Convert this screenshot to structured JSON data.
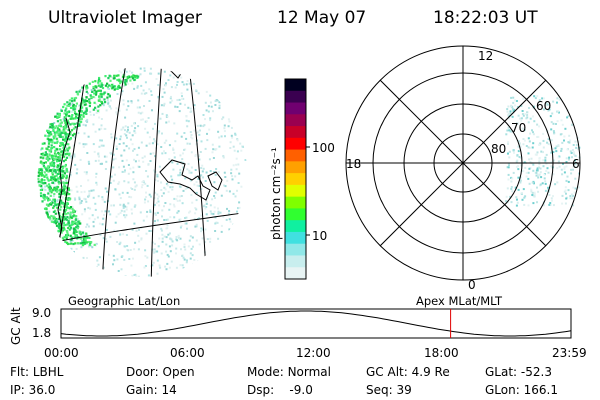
{
  "header": {
    "instrument": "Ultraviolet Imager",
    "date": "12 May 07",
    "time": "18:22:03 UT"
  },
  "left_panel": {
    "footer_label": "Geographic Lat/Lon"
  },
  "colorbar": {
    "unit_label": "photon cm⁻²s⁻¹",
    "ticks": [
      "100",
      "10"
    ],
    "colors": [
      "#000020",
      "#3a0050",
      "#700070",
      "#9a0050",
      "#c80028",
      "#ff0000",
      "#ff6000",
      "#ffa000",
      "#ffd000",
      "#e0ff00",
      "#80ff00",
      "#30ff30",
      "#10f0a0",
      "#40e0e0",
      "#90e8e8",
      "#c8eeee",
      "#e8f4f4"
    ]
  },
  "polar_plot": {
    "footer_label": "Apex MLat/MLT",
    "mlt_labels": {
      "top": "12",
      "left": "18",
      "right": "6",
      "bottom": "0"
    },
    "lat_labels": [
      "60",
      "70",
      "80"
    ]
  },
  "timeline": {
    "ylabel": "GC Alt",
    "ymax": "9.0",
    "ymin": "1.8",
    "x_ticks": [
      "00:00",
      "06:00",
      "12:00",
      "18:00",
      "23:59"
    ],
    "current_time_fraction": 0.764
  },
  "status": {
    "row1": [
      {
        "key": "Flt:",
        "value": "LBHL"
      },
      {
        "key": "Door:",
        "value": "Open"
      },
      {
        "key": "Mode:",
        "value": "Normal"
      },
      {
        "key": "GC Alt:",
        "value": "4.9 Re"
      },
      {
        "key": "GLat:",
        "value": "-52.3"
      }
    ],
    "row2": [
      {
        "key": "IP:",
        "value": "36.0"
      },
      {
        "key": "Gain:",
        "value": "14"
      },
      {
        "key": "Dsp:",
        "value": "-9.0"
      },
      {
        "key": "Seq:",
        "value": "39"
      },
      {
        "key": "GLon:",
        "value": "166.1"
      }
    ]
  }
}
